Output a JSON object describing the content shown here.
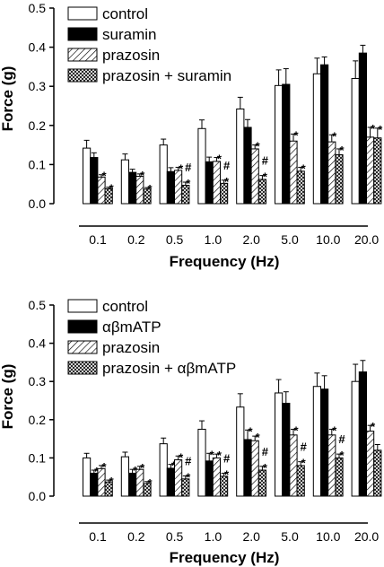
{
  "colors": {
    "ink": "#000000",
    "control": "#ffffff",
    "suramin": "#000000",
    "abmATP": "#000000"
  },
  "chart_data": [
    {
      "type": "bar",
      "xlabel": "Frequency (Hz)",
      "ylabel": "Force (g)",
      "ylim": [
        0,
        0.5
      ],
      "yticks": [
        "0.0",
        "0.1",
        "0.2",
        "0.3",
        "0.4",
        "0.5"
      ],
      "categories": [
        "0.1",
        "0.2",
        "0.5",
        "1.0",
        "2.0",
        "5.0",
        "10.0",
        "20.0"
      ],
      "legend_position": "top-left",
      "series": [
        {
          "name": "control",
          "pattern": "white",
          "values": [
            0.142,
            0.112,
            0.15,
            0.192,
            0.242,
            0.302,
            0.332,
            0.32
          ],
          "errors": [
            0.02,
            0.015,
            0.015,
            0.022,
            0.03,
            0.04,
            0.04,
            0.045
          ],
          "marks": [
            "",
            "",
            "",
            "",
            "",
            "",
            "",
            ""
          ]
        },
        {
          "name": "suramin",
          "pattern": "solid",
          "values": [
            0.118,
            0.08,
            0.082,
            0.107,
            0.195,
            0.305,
            0.355,
            0.385
          ],
          "errors": [
            0.012,
            0.008,
            0.01,
            0.012,
            0.02,
            0.04,
            0.02,
            0.02
          ],
          "marks": [
            "",
            "",
            "",
            "",
            "",
            "",
            "",
            ""
          ]
        },
        {
          "name": "prazosin",
          "pattern": "diagonal",
          "values": [
            0.068,
            0.07,
            0.085,
            0.108,
            0.14,
            0.16,
            0.158,
            0.17
          ],
          "errors": [
            0.006,
            0.006,
            0.008,
            0.01,
            0.01,
            0.018,
            0.018,
            0.025
          ],
          "marks": [
            "*",
            "*",
            "*",
            "*",
            "*",
            "*",
            "*",
            "*"
          ]
        },
        {
          "name": "prazosin + suramin",
          "pattern": "crosshatch",
          "values": [
            0.038,
            0.037,
            0.047,
            0.052,
            0.062,
            0.083,
            0.125,
            0.168
          ],
          "errors": [
            0.004,
            0.004,
            0.008,
            0.008,
            0.01,
            0.01,
            0.015,
            0.025
          ],
          "marks": [
            "*",
            "*",
            "#*",
            "#*",
            "#*",
            "*",
            "*",
            "*"
          ]
        }
      ]
    },
    {
      "type": "bar",
      "xlabel": "Frequency (Hz)",
      "ylabel": "Force (g)",
      "ylim": [
        0,
        0.5
      ],
      "yticks": [
        "0.0",
        "0.1",
        "0.2",
        "0.3",
        "0.4",
        "0.5"
      ],
      "categories": [
        "0.1",
        "0.2",
        "0.5",
        "1.0",
        "2.0",
        "5.0",
        "10.0",
        "20.0"
      ],
      "legend_position": "top-left",
      "series": [
        {
          "name": "control",
          "pattern": "white",
          "values": [
            0.1,
            0.103,
            0.137,
            0.175,
            0.233,
            0.27,
            0.287,
            0.3
          ],
          "errors": [
            0.012,
            0.012,
            0.015,
            0.022,
            0.035,
            0.035,
            0.035,
            0.045
          ],
          "marks": [
            "",
            "",
            "",
            "",
            "",
            "",
            "",
            ""
          ]
        },
        {
          "name": "αβmATP",
          "pattern": "solid",
          "values": [
            0.06,
            0.06,
            0.073,
            0.092,
            0.148,
            0.243,
            0.28,
            0.325
          ],
          "errors": [
            0.008,
            0.01,
            0.01,
            0.02,
            0.025,
            0.03,
            0.035,
            0.03
          ],
          "marks": [
            "*",
            "*",
            "*",
            "*",
            "*",
            "",
            "",
            ""
          ]
        },
        {
          "name": "prazosin",
          "pattern": "diagonal",
          "values": [
            0.072,
            0.07,
            0.095,
            0.1,
            0.145,
            0.16,
            0.16,
            0.17
          ],
          "errors": [
            0.008,
            0.008,
            0.01,
            0.01,
            0.012,
            0.015,
            0.015,
            0.015
          ],
          "marks": [
            "*",
            "*",
            "*",
            "*",
            "*",
            "*",
            "*",
            "*"
          ]
        },
        {
          "name": "prazosin + αβmATP",
          "pattern": "crosshatch",
          "values": [
            0.037,
            0.033,
            0.045,
            0.052,
            0.068,
            0.08,
            0.1,
            0.12
          ],
          "errors": [
            0.005,
            0.005,
            0.008,
            0.008,
            0.01,
            0.01,
            0.01,
            0.015
          ],
          "marks": [
            "*",
            "*",
            "#*",
            "#*",
            "#*",
            "#*",
            "#*",
            ""
          ]
        }
      ]
    }
  ]
}
